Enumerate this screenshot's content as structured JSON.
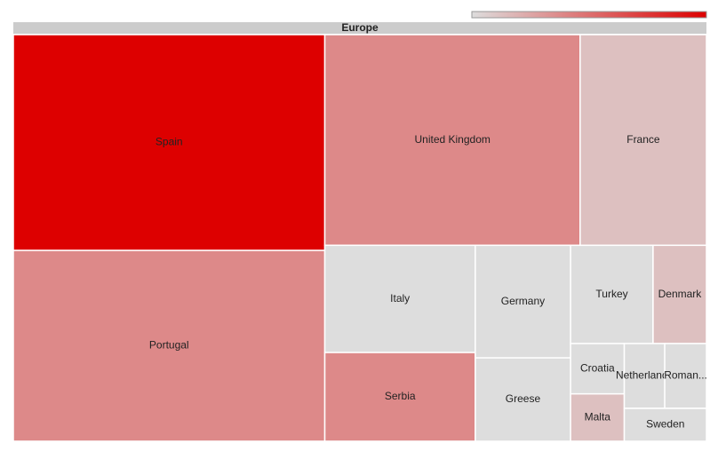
{
  "chart_data": {
    "type": "treemap",
    "root": "Europe",
    "categories": [
      "Spain",
      "Portugal",
      "United Kingdom",
      "France",
      "Italy",
      "Serbia",
      "Germany",
      "Greese",
      "Turkey",
      "Denmark",
      "Croatia",
      "Malta",
      "Netherlands",
      "Roman...",
      "Sweden"
    ],
    "values": [
      846,
      748,
      677,
      335,
      203,
      168,
      135,
      100,
      102,
      66,
      34,
      32,
      33,
      34,
      34
    ],
    "color_values": [
      100,
      38,
      38,
      13,
      0,
      38,
      0,
      0,
      0,
      13,
      0,
      13,
      0,
      0,
      0
    ],
    "min_color": "#dddddd",
    "max_color": "#dd0000",
    "header_color": "#cccccc"
  }
}
